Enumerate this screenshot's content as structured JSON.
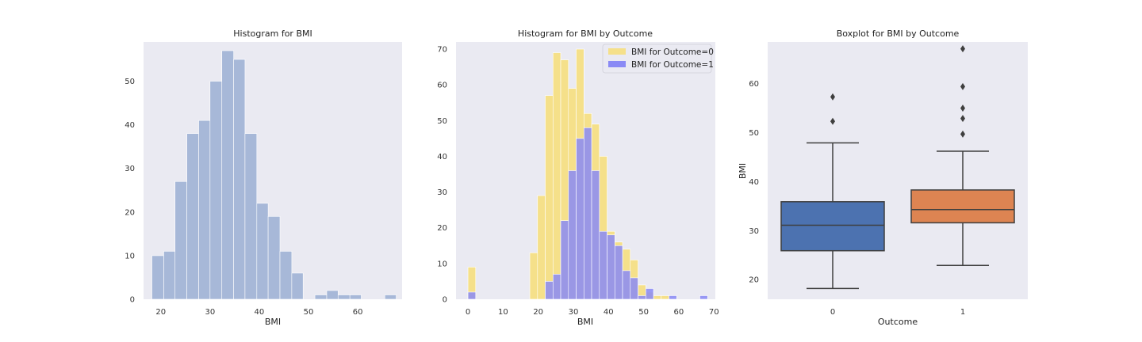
{
  "chart_data": [
    {
      "type": "histogram",
      "title": "Histogram for BMI",
      "xlabel": "BMI",
      "ylabel": "",
      "xlim": [
        16.5,
        69
      ],
      "ylim": [
        0,
        59
      ],
      "xticks": [
        20,
        30,
        40,
        50,
        60
      ],
      "yticks": [
        0,
        10,
        20,
        30,
        40,
        50
      ],
      "grid": false,
      "bin_edges": [
        18.2,
        20.6,
        22.9,
        25.3,
        27.7,
        30.0,
        32.4,
        34.8,
        37.1,
        39.5,
        41.8,
        44.2,
        46.6,
        48.9,
        51.3,
        53.7,
        56.0,
        58.4,
        60.7,
        63.1,
        65.5,
        67.8
      ],
      "values": [
        10,
        11,
        27,
        38,
        41,
        50,
        57,
        55,
        38,
        22,
        19,
        11,
        6,
        0,
        1,
        2,
        1,
        1,
        0,
        0,
        1
      ],
      "colors": {
        "bar": "#a7b8d8",
        "background": "#eaeaf2"
      }
    },
    {
      "type": "histogram",
      "title": "Histogram for BMI by Outcome",
      "xlabel": "BMI",
      "ylabel": "",
      "xlim": [
        -3.4,
        70.4
      ],
      "ylim": [
        0,
        72
      ],
      "xticks": [
        0,
        10,
        20,
        30,
        40,
        50,
        60,
        70
      ],
      "yticks": [
        0,
        10,
        20,
        30,
        40,
        50,
        60,
        70
      ],
      "grid": false,
      "legend_position": "top-right",
      "series": [
        {
          "name": "BMI for Outcome=0",
          "color": "#f5e08a",
          "bin_edges": [
            0,
            2.2,
            4.4,
            6.6,
            8.8,
            11.0,
            13.2,
            15.4,
            17.6,
            19.8,
            22.0,
            24.2,
            26.4,
            28.6,
            30.8,
            33.0,
            35.2,
            37.4,
            39.6,
            41.8,
            44.0,
            46.2,
            48.4,
            50.6,
            52.8,
            55.0,
            57.2
          ],
          "values": [
            9,
            0,
            0,
            0,
            0,
            0,
            0,
            0,
            13,
            29,
            57,
            69,
            67,
            59,
            70,
            52,
            49,
            40,
            19,
            16,
            14,
            11,
            4,
            2,
            1,
            1
          ]
        },
        {
          "name": "BMI for Outcome=1",
          "color": "#8a8af5",
          "bin_edges": [
            0,
            2.2,
            4.4,
            6.6,
            8.8,
            11.0,
            13.2,
            15.4,
            17.6,
            19.8,
            22.0,
            24.2,
            26.4,
            28.6,
            30.8,
            33.0,
            35.2,
            37.4,
            39.6,
            41.8,
            44.0,
            46.2,
            48.4,
            50.6,
            52.8,
            55.0,
            57.2,
            59.4,
            61.6,
            63.8,
            66.0,
            68.2
          ],
          "values": [
            2,
            0,
            0,
            0,
            0,
            0,
            0,
            0,
            0,
            0,
            5,
            7,
            22,
            36,
            45,
            48,
            36,
            19,
            18,
            15,
            8,
            6,
            1,
            3,
            0,
            0,
            1,
            0,
            0,
            0,
            1
          ]
        }
      ]
    },
    {
      "type": "box",
      "title": "Boxplot for BMI by Outcome",
      "xlabel": "Outcome",
      "ylabel": "BMI",
      "ylim": [
        16,
        68.5
      ],
      "yticks": [
        20,
        30,
        40,
        50,
        60
      ],
      "grid": false,
      "categories": [
        "0",
        "1"
      ],
      "boxes": [
        {
          "category": "0",
          "whisker_low": 18.2,
          "q1": 25.9,
          "median": 31.1,
          "q3": 35.9,
          "whisker_high": 47.9,
          "outliers": [
            52.3,
            57.3
          ],
          "color": "#4c72b0"
        },
        {
          "category": "1",
          "whisker_low": 22.9,
          "q1": 31.6,
          "median": 34.3,
          "q3": 38.3,
          "whisker_high": 46.2,
          "outliers": [
            49.7,
            52.9,
            55.0,
            59.4,
            67.1
          ],
          "color": "#dd8452"
        }
      ]
    }
  ]
}
